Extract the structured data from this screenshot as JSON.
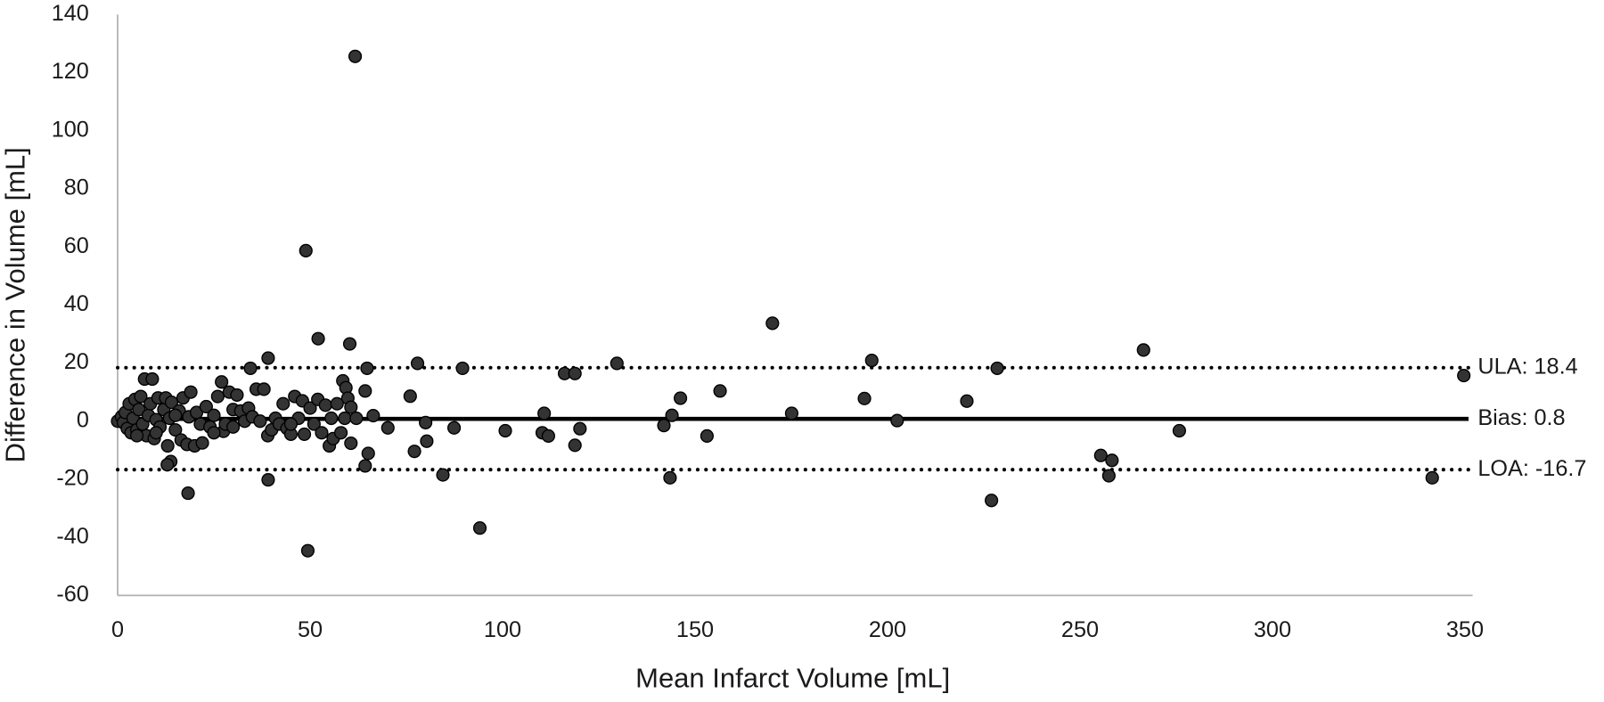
{
  "chart_data": {
    "type": "scatter",
    "x_label": "Mean Infarct Volume [mL]",
    "y_label": "Difference in Volume [mL]",
    "color": "#333333",
    "xlim": [
      0,
      352
    ],
    "xticks": [
      0,
      50,
      100,
      150,
      200,
      250,
      300,
      350
    ],
    "ylim": [
      -60,
      140
    ],
    "yticks": [
      -60,
      -40,
      -20,
      0,
      20,
      40,
      60,
      80,
      100,
      120,
      140
    ],
    "lines": [
      {
        "label": "ULA: 18.4",
        "value": 18.4,
        "style": "dotted"
      },
      {
        "label": "Bias: 0.8",
        "value": 0.8,
        "style": "solid"
      },
      {
        "label": "LOA: -16.7",
        "value": -16.7,
        "style": "dotted"
      }
    ],
    "x": [
      61.7,
      48.9,
      52.1,
      60.3,
      39.1,
      34.5,
      64.8,
      77.9,
      89.6,
      116.1,
      118.8,
      129.7,
      170.1,
      195.9,
      228.5,
      266.5,
      349.7,
      194,
      220.6,
      202.5,
      175.1,
      156.5,
      146.2,
      144,
      141.9,
      153.1,
      143.5,
      110.8,
      110.3,
      111.9,
      120.1,
      118.8,
      100.7,
      94.1,
      84.5,
      87.4,
      80.3,
      80,
      76,
      77.1,
      70.2,
      66.4,
      65.1,
      64.3,
      64.3,
      60.6,
      58.5,
      59.3,
      59.8,
      60.6,
      49.4,
      39.1,
      18.3,
      13.8,
      12.9,
      13,
      227,
      255.4,
      258.3,
      257.5,
      275.8,
      341.5,
      0,
      1,
      1.5,
      2,
      2.5,
      3,
      3.5,
      4,
      4.5,
      5,
      5.5,
      6,
      6.5,
      7,
      7.5,
      8,
      8.5,
      9,
      9.5,
      10,
      10.5,
      11,
      12,
      12.5,
      13.5,
      14,
      15,
      16,
      16.5,
      17,
      18,
      18.5,
      19,
      20,
      20.5,
      21.5,
      22,
      23,
      24,
      25,
      26,
      27,
      27.5,
      28,
      29,
      30,
      31,
      32,
      33,
      34,
      35,
      36,
      37,
      38,
      39,
      40,
      41,
      42,
      43,
      44,
      45,
      46,
      47,
      48,
      48.5,
      50,
      51,
      52,
      53,
      54,
      55,
      55.5,
      56,
      57,
      58,
      59,
      62,
      45,
      30,
      25,
      15,
      10,
      5
    ],
    "values": [
      125.6,
      58.7,
      28.4,
      26.6,
      21.7,
      18.2,
      18.2,
      19.9,
      18.2,
      16.4,
      16.4,
      19.9,
      33.7,
      20.9,
      18.2,
      24.5,
      15.7,
      7.8,
      6.9,
      0.2,
      2.7,
      10.4,
      7.9,
      2,
      -1.5,
      -5.1,
      -19.5,
      2.7,
      -4,
      -5.1,
      -2.6,
      -8.3,
      -3.3,
      -36.8,
      -18.5,
      -2.3,
      -6.9,
      -0.5,
      8.6,
      -10.4,
      -2.3,
      1.9,
      -11.1,
      -15.4,
      10.4,
      -7.6,
      13.9,
      11.5,
      7.9,
      4.8,
      -44.6,
      -20.2,
      -24.8,
      -13.9,
      -15,
      -8.5,
      -27.3,
      -11.8,
      -13.5,
      -18.8,
      -3.3,
      -19.5,
      0,
      1.5,
      -0.5,
      3,
      -2.5,
      6,
      -4,
      1,
      7.5,
      -3,
      4,
      8.5,
      -1,
      14.5,
      -5,
      2,
      6,
      14.5,
      -6,
      0.5,
      8,
      -2,
      4,
      8,
      1,
      6.5,
      -3,
      3.5,
      -6.5,
      8,
      -8,
      1.5,
      10,
      -8.5,
      3,
      -1,
      -7.5,
      5,
      -2,
      2,
      8.5,
      13.5,
      -3.5,
      -1,
      10,
      4,
      9,
      3.5,
      0,
      4.5,
      1.5,
      11,
      0,
      11,
      -5,
      -3,
      1,
      -1,
      6,
      -2.5,
      -4.5,
      8.5,
      1,
      7,
      -4.5,
      4.5,
      -1,
      7.5,
      -4,
      5.5,
      -8.5,
      1,
      -6,
      6,
      -4,
      1,
      1,
      -1,
      -2,
      -4,
      2,
      -4,
      -5
    ]
  }
}
